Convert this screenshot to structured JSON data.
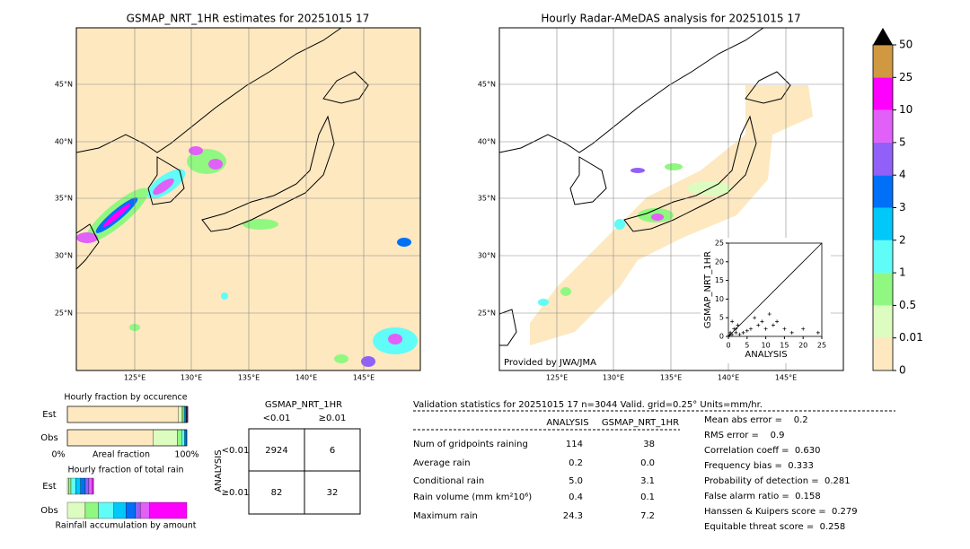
{
  "left_map": {
    "title": "GSMAP_NRT_1HR estimates for 20251015 17",
    "lat_labels": [
      "45°N",
      "40°N",
      "35°N",
      "30°N",
      "25°N"
    ],
    "lon_labels": [
      "125°E",
      "130°E",
      "135°E",
      "140°E",
      "145°E"
    ]
  },
  "right_map": {
    "title": "Hourly Radar-AMeDAS analysis for 20251015 17",
    "lat_labels": [
      "45°N",
      "40°N",
      "35°N",
      "30°N",
      "25°N"
    ],
    "lon_labels": [
      "125°E",
      "130°E",
      "135°E",
      "140°E",
      "145°E"
    ],
    "credit": "Provided by JWA/JMA"
  },
  "colorbar": {
    "levels": [
      "0",
      "0.01",
      "0.5",
      "1",
      "2",
      "3",
      "4",
      "5",
      "10",
      "25",
      "50"
    ],
    "colors": [
      "#fde8c0",
      "#ddfcc0",
      "#90f880",
      "#60fcf8",
      "#00c8f8",
      "#0070f8",
      "#9060f8",
      "#e060f8",
      "#ff00ff",
      "#d09840"
    ],
    "extend_color": "#000000"
  },
  "scatter": {
    "type": "scatter",
    "xlabel": "ANALYSIS",
    "ylabel": "GSMAP_NRT_1HR",
    "xlim": [
      0,
      25
    ],
    "ylim": [
      0,
      25
    ],
    "xticks": [
      0,
      5,
      10,
      15,
      20,
      25
    ],
    "yticks": [
      0,
      5,
      10,
      15,
      20,
      25
    ],
    "x": [
      0,
      0.5,
      1,
      1.5,
      2,
      2.5,
      3,
      1,
      4,
      5,
      6,
      7,
      8,
      9,
      10,
      11,
      12,
      13,
      15,
      17,
      20,
      24,
      2,
      0.3
    ],
    "y": [
      0,
      1,
      0.5,
      2,
      1,
      3,
      0.5,
      4,
      1,
      1.5,
      2,
      5,
      3,
      4,
      2,
      6,
      3,
      4,
      2,
      1,
      2,
      1,
      2,
      0.3
    ]
  },
  "occurrence": {
    "title": "Hourly fraction by occurence",
    "labels": [
      "Est",
      "Obs"
    ],
    "xlabel": "Areal fraction",
    "xtick_labels": [
      "0%",
      "100%"
    ],
    "fractions": [
      [
        0.93,
        0.03,
        0.01,
        0.01,
        0.01,
        0.005,
        0.005,
        0.005,
        0.005,
        0
      ],
      [
        0.72,
        0.2,
        0.04,
        0.02,
        0.01,
        0.01,
        0,
        0,
        0,
        0
      ]
    ]
  },
  "accumulation": {
    "title": "Hourly fraction of total rain",
    "labels": [
      "Est",
      "Obs"
    ],
    "xlabel": "Rainfall accumulation by amount",
    "fractions": [
      [
        0,
        0.01,
        0.02,
        0.04,
        0.04,
        0.04,
        0.03,
        0.03,
        0.01,
        0
      ],
      [
        0,
        0.15,
        0.11,
        0.13,
        0.1,
        0.08,
        0.04,
        0.08,
        0.31,
        0
      ]
    ]
  },
  "contingency": {
    "title": "GSMAP_NRT_1HR",
    "col_labels": [
      "<0.01",
      "≥0.01"
    ],
    "row_title": "ANALYSIS",
    "row_labels": [
      "<0.01",
      "≥0.01"
    ],
    "cells": [
      [
        2924,
        6
      ],
      [
        82,
        32
      ]
    ]
  },
  "validation": {
    "header": "Validation statistics for 20251015 17  n=3044 Valid. grid=0.25° Units=mm/hr.",
    "columns": [
      "ANALYSIS",
      "GSMAP_NRT_1HR"
    ],
    "rows": [
      {
        "label": "Num of gridpoints raining",
        "analysis": "114",
        "gsmap": "38"
      },
      {
        "label": "Average rain",
        "analysis": "0.2",
        "gsmap": "0.0"
      },
      {
        "label": "Conditional rain",
        "analysis": "5.0",
        "gsmap": "3.1"
      },
      {
        "label": "Rain volume (mm km²10⁶)",
        "analysis": "0.4",
        "gsmap": "0.1"
      },
      {
        "label": "Maximum rain",
        "analysis": "24.3",
        "gsmap": "7.2"
      }
    ],
    "scores": [
      "Mean abs error =    0.2",
      "RMS error =    0.9",
      "Correlation coeff =  0.630",
      "Frequency bias =  0.333",
      "Probability of detection =  0.281",
      "False alarm ratio =  0.158",
      "Hanssen & Kuipers score =  0.279",
      "Equitable threat score =  0.258"
    ]
  }
}
